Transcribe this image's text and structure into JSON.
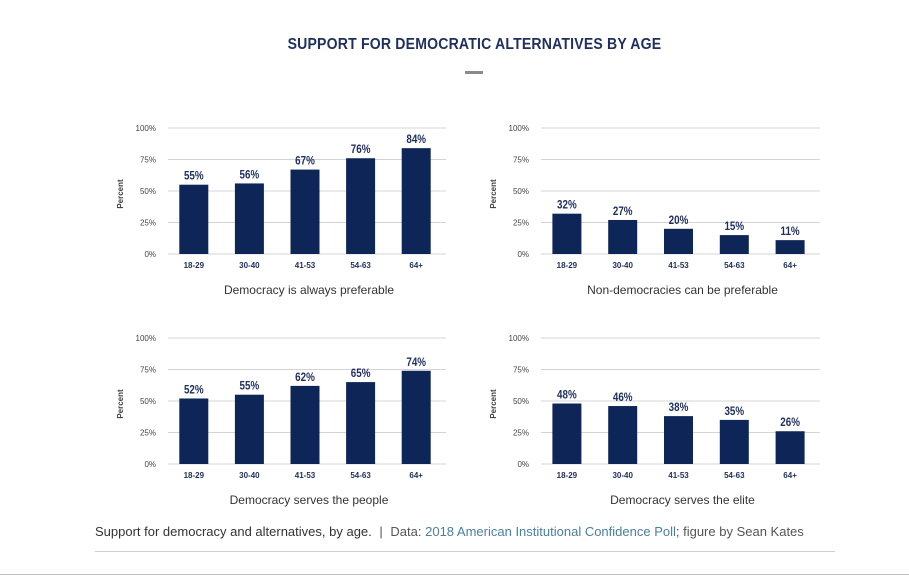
{
  "title": "SUPPORT FOR DEMOCRATIC ALTERNATIVES BY AGE",
  "caption": {
    "text": "Support for democracy and alternatives, by age.",
    "separator": "|",
    "source_prefix": "Data:",
    "source_link": "2018 American Institutional Confidence Poll",
    "source_suffix": "; figure by Sean Kates"
  },
  "colors": {
    "bar": "#0d2557",
    "label": "#1f2f5e",
    "grid": "#d4d4d4",
    "axis_text": "#444444"
  },
  "chart_data": [
    {
      "type": "bar",
      "title": "Democracy is always preferable",
      "ylabel": "Percent",
      "categories": [
        "18-29",
        "30-40",
        "41-53",
        "54-63",
        "64+"
      ],
      "values": [
        55,
        56,
        67,
        76,
        84
      ],
      "data_labels": [
        "55%",
        "56%",
        "67%",
        "76%",
        "84%"
      ],
      "yticks": [
        "0%",
        "25%",
        "50%",
        "75%",
        "100%"
      ],
      "ylim": [
        0,
        100
      ],
      "grid": true
    },
    {
      "type": "bar",
      "title": "Non-democracies can be preferable",
      "ylabel": "Percent",
      "categories": [
        "18-29",
        "30-40",
        "41-53",
        "54-63",
        "64+"
      ],
      "values": [
        32,
        27,
        20,
        15,
        11
      ],
      "data_labels": [
        "32%",
        "27%",
        "20%",
        "15%",
        "11%"
      ],
      "yticks": [
        "0%",
        "25%",
        "50%",
        "75%",
        "100%"
      ],
      "ylim": [
        0,
        100
      ],
      "grid": true
    },
    {
      "type": "bar",
      "title": "Democracy serves the people",
      "ylabel": "Percent",
      "categories": [
        "18-29",
        "30-40",
        "41-53",
        "54-63",
        "64+"
      ],
      "values": [
        52,
        55,
        62,
        65,
        74
      ],
      "data_labels": [
        "52%",
        "55%",
        "62%",
        "65%",
        "74%"
      ],
      "yticks": [
        "0%",
        "25%",
        "50%",
        "75%",
        "100%"
      ],
      "ylim": [
        0,
        100
      ],
      "grid": true
    },
    {
      "type": "bar",
      "title": "Democracy serves the elite",
      "ylabel": "Percent",
      "categories": [
        "18-29",
        "30-40",
        "41-53",
        "54-63",
        "64+"
      ],
      "values": [
        48,
        46,
        38,
        35,
        26
      ],
      "data_labels": [
        "48%",
        "46%",
        "38%",
        "35%",
        "26%"
      ],
      "yticks": [
        "0%",
        "25%",
        "50%",
        "75%",
        "100%"
      ],
      "ylim": [
        0,
        100
      ],
      "grid": true
    }
  ]
}
